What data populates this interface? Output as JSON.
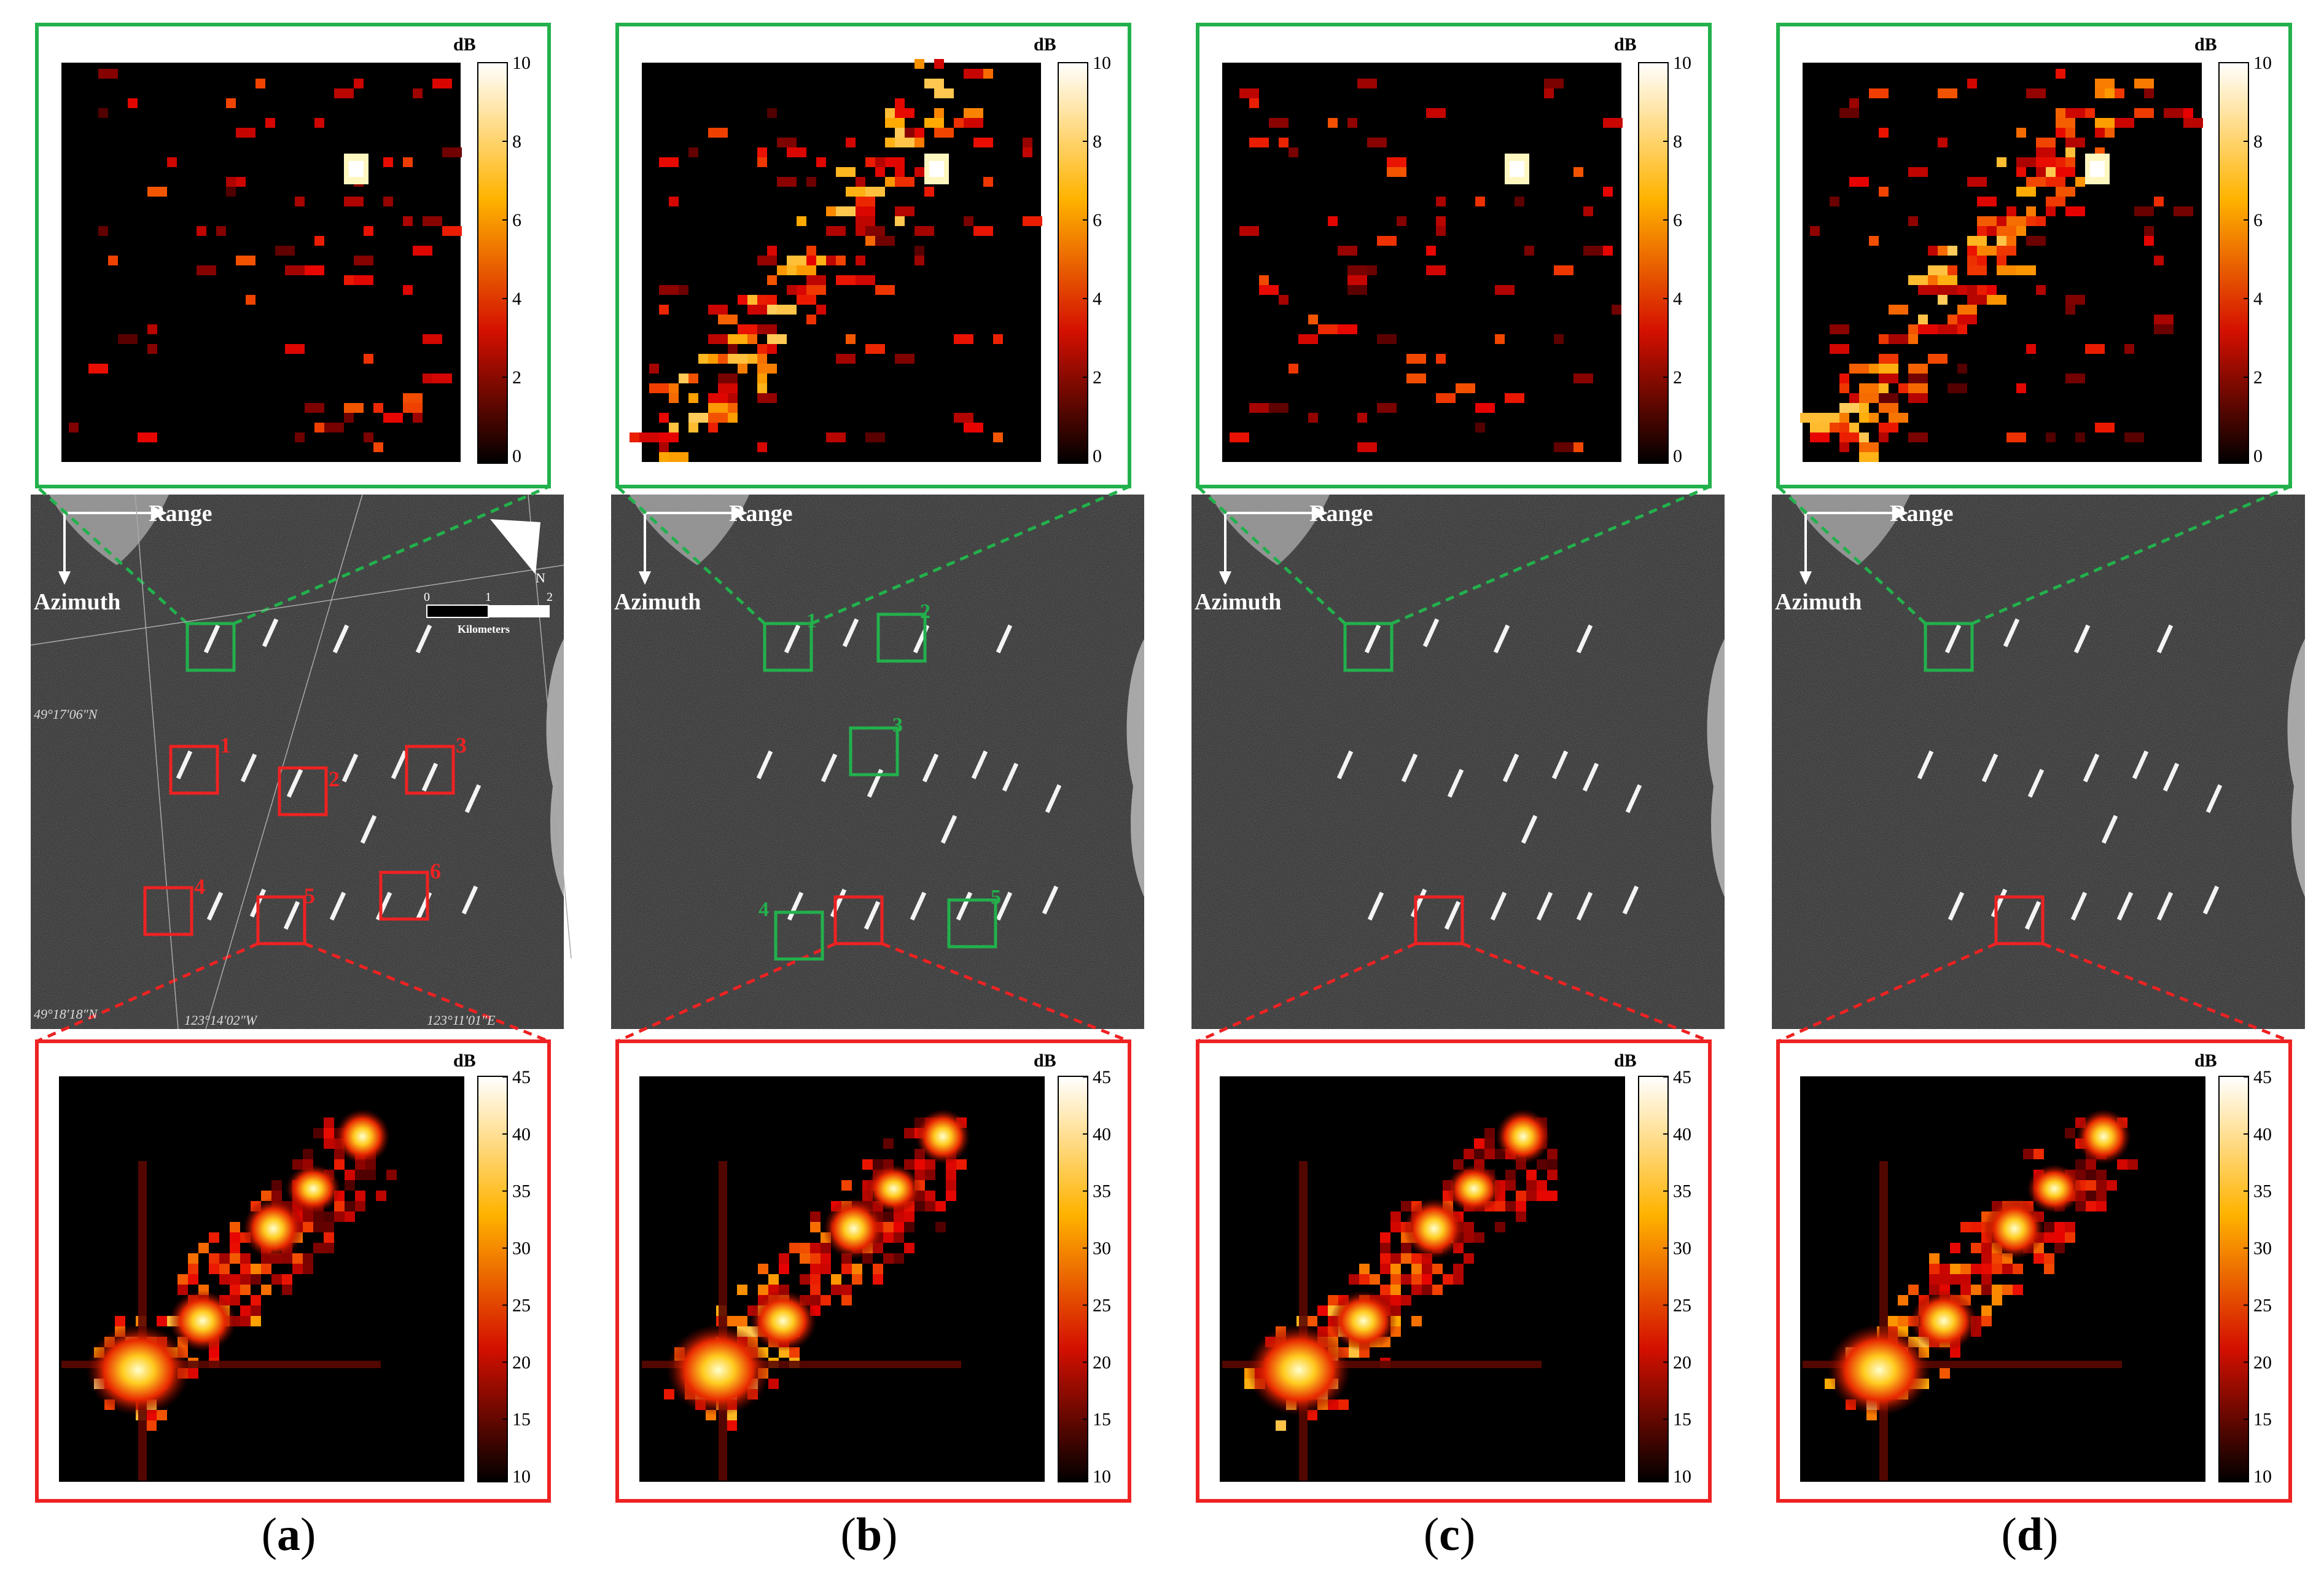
{
  "figure": {
    "units_label": "dB",
    "top_scale_ticks": [
      "10",
      "8",
      "6",
      "4",
      "2",
      "0"
    ],
    "bottom_scale_ticks": [
      "45",
      "40",
      "35",
      "30",
      "25",
      "20",
      "15",
      "10"
    ],
    "sar_labels": {
      "range": "Range",
      "azimuth": "Azimuth",
      "kilometers": "Kilometers",
      "scale_ticks": [
        "0",
        "1",
        "2"
      ],
      "north_arrow": "N"
    },
    "geo_labels": {
      "lat_top": "49°17′06″N",
      "lat_bottom": "49°18′18″N",
      "lon_left": "123°14′02″W",
      "lon_right": "123°11′01″E"
    },
    "panel_a_boxes": [
      "1",
      "2",
      "3",
      "4",
      "5",
      "6"
    ],
    "panel_b_green_boxes": [
      "1",
      "2",
      "3",
      "4",
      "5"
    ],
    "panels": [
      {
        "open": "(",
        "letter": "a",
        "close": ")"
      },
      {
        "open": "(",
        "letter": "b",
        "close": ")"
      },
      {
        "open": "(",
        "letter": "c",
        "close": ")"
      },
      {
        "open": "(",
        "letter": "d",
        "close": ")"
      }
    ],
    "colors": {
      "green_frame": "#22b14c",
      "red_frame": "#ee2222",
      "sar_background": "#1c1c1c",
      "heat_background": "#000000"
    }
  }
}
